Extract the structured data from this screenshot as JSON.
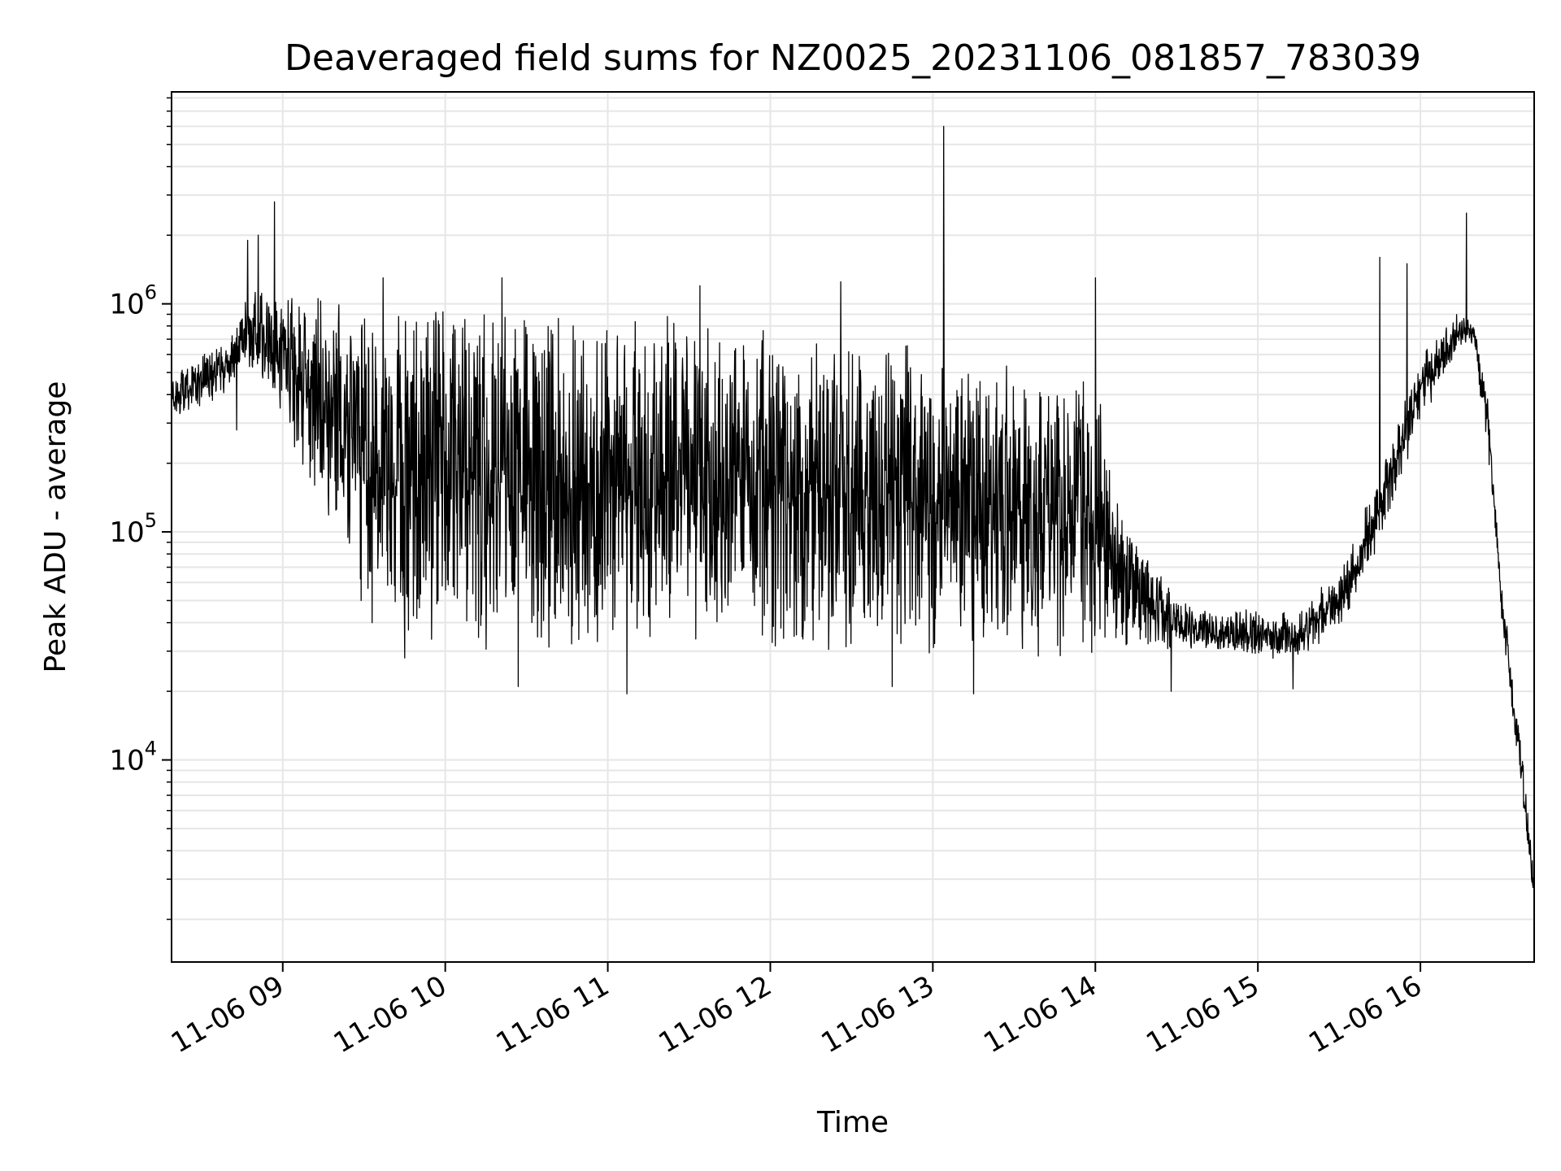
{
  "chart_data": {
    "type": "line",
    "title": "Deaveraged field sums for NZ0025_20231106_081857_783039",
    "xlabel": "Time",
    "ylabel": "Peak ADU - average",
    "xlim": [
      "2023-11-06T08:18:57",
      "2023-11-06T16:42:00"
    ],
    "ylim": [
      1300,
      8500000
    ],
    "yscale": "log",
    "grid": true,
    "legend": "none",
    "x_ticks": [
      {
        "value": "2023-11-06T09:00",
        "label": "11-06 09"
      },
      {
        "value": "2023-11-06T10:00",
        "label": "11-06 10"
      },
      {
        "value": "2023-11-06T11:00",
        "label": "11-06 11"
      },
      {
        "value": "2023-11-06T12:00",
        "label": "11-06 12"
      },
      {
        "value": "2023-11-06T13:00",
        "label": "11-06 13"
      },
      {
        "value": "2023-11-06T14:00",
        "label": "11-06 14"
      },
      {
        "value": "2023-11-06T15:00",
        "label": "11-06 15"
      },
      {
        "value": "2023-11-06T16:00",
        "label": "11-06 16"
      }
    ],
    "y_ticks": [
      {
        "value": 10000,
        "base": "10",
        "exp": "4"
      },
      {
        "value": 100000,
        "base": "10",
        "exp": "5"
      },
      {
        "value": 1000000,
        "base": "10",
        "exp": "6"
      }
    ],
    "series_color": "#000000",
    "envelope": [
      {
        "time": "08:19",
        "low": 300000,
        "high": 500000
      },
      {
        "time": "08:40",
        "low": 400000,
        "high": 700000
      },
      {
        "time": "08:45",
        "low": 550000,
        "high": 1100000
      },
      {
        "time": "09:00",
        "low": 300000,
        "high": 1300000
      },
      {
        "time": "09:15",
        "low": 120000,
        "high": 1100000
      },
      {
        "time": "09:30",
        "low": 50000,
        "high": 1000000
      },
      {
        "time": "09:45",
        "low": 35000,
        "high": 1000000
      },
      {
        "time": "10:00",
        "low": 30000,
        "high": 1100000
      },
      {
        "time": "10:30",
        "low": 30000,
        "high": 1100000
      },
      {
        "time": "11:00",
        "low": 30000,
        "high": 1000000
      },
      {
        "time": "11:30",
        "low": 30000,
        "high": 900000
      },
      {
        "time": "12:00",
        "low": 30000,
        "high": 850000
      },
      {
        "time": "12:30",
        "low": 28000,
        "high": 750000
      },
      {
        "time": "13:00",
        "low": 28000,
        "high": 650000
      },
      {
        "time": "13:30",
        "low": 28000,
        "high": 550000
      },
      {
        "time": "14:00",
        "low": 28000,
        "high": 450000
      },
      {
        "time": "14:15",
        "low": 30000,
        "high": 100000
      },
      {
        "time": "14:30",
        "low": 30000,
        "high": 50000
      },
      {
        "time": "15:00",
        "low": 27000,
        "high": 45000
      },
      {
        "time": "15:15",
        "low": 28000,
        "high": 45000
      },
      {
        "time": "15:30",
        "low": 35000,
        "high": 70000
      },
      {
        "time": "15:45",
        "low": 90000,
        "high": 180000
      },
      {
        "time": "16:00",
        "low": 300000,
        "high": 600000
      },
      {
        "time": "16:15",
        "low": 650000,
        "high": 950000
      },
      {
        "time": "16:20",
        "low": 650000,
        "high": 800000
      },
      {
        "time": "16:25",
        "low": 200000,
        "high": 400000
      },
      {
        "time": "16:30",
        "low": 40000,
        "high": 60000
      },
      {
        "time": "16:35",
        "low": 12000,
        "high": 20000
      },
      {
        "time": "16:42",
        "low": 2300,
        "high": 3500
      }
    ],
    "spikes": [
      {
        "time": "08:57",
        "value": 2800000
      },
      {
        "time": "08:51",
        "value": 2000000
      },
      {
        "time": "08:47",
        "value": 1900000
      },
      {
        "time": "13:04",
        "value": 6000000
      },
      {
        "time": "16:17",
        "value": 2500000
      },
      {
        "time": "15:45",
        "value": 1600000
      },
      {
        "time": "15:55",
        "value": 1500000
      },
      {
        "time": "14:00",
        "value": 1300000
      },
      {
        "time": "12:26",
        "value": 1250000
      },
      {
        "time": "11:34",
        "value": 1200000
      },
      {
        "time": "10:21",
        "value": 1300000
      },
      {
        "time": "09:37",
        "value": 1300000
      }
    ],
    "dips": [
      {
        "time": "08:43",
        "value": 280000
      },
      {
        "time": "09:29",
        "value": 50000
      },
      {
        "time": "09:33",
        "value": 40000
      },
      {
        "time": "09:45",
        "value": 28000
      },
      {
        "time": "10:27",
        "value": 21000
      },
      {
        "time": "11:07",
        "value": 19500
      },
      {
        "time": "12:45",
        "value": 21000
      },
      {
        "time": "13:15",
        "value": 19500
      },
      {
        "time": "14:28",
        "value": 20000
      },
      {
        "time": "15:13",
        "value": 20500
      }
    ]
  }
}
